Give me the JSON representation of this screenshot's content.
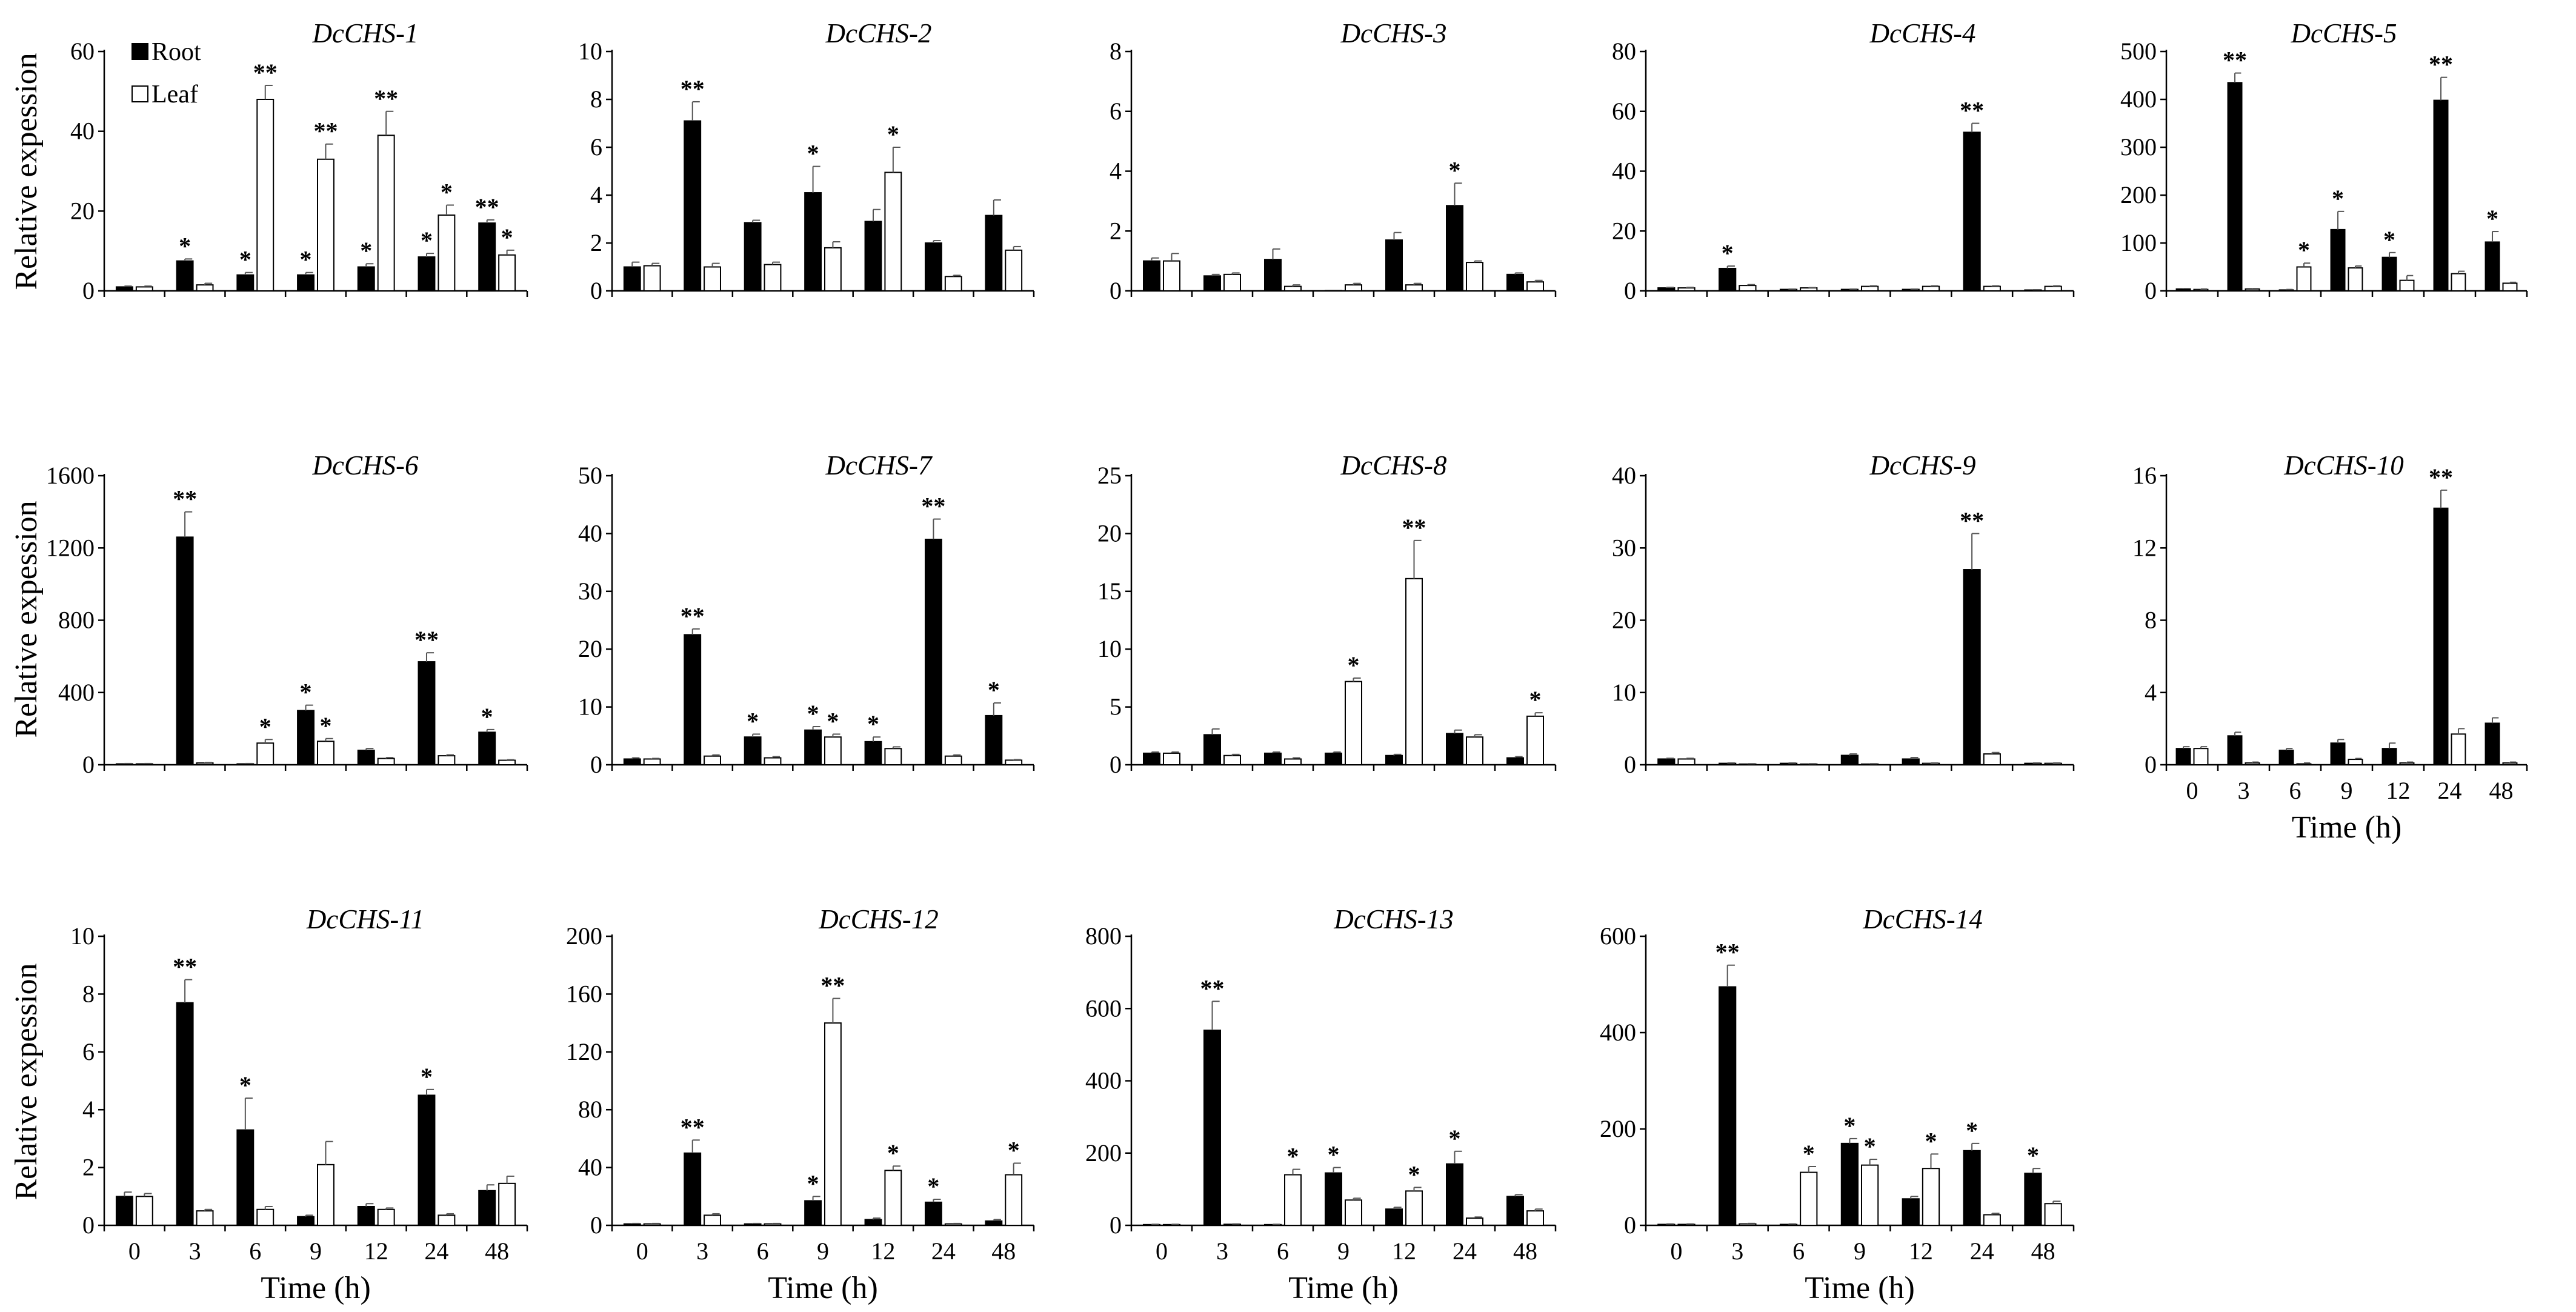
{
  "legend": {
    "root": "Root",
    "leaf": "Leaf"
  },
  "chart_data": [
    {
      "type": "bar",
      "title": "DcCHS-1",
      "categories": [
        "0",
        "3",
        "6",
        "9",
        "12",
        "24",
        "48"
      ],
      "ylim": [
        0,
        60
      ],
      "yticks": [
        0,
        20,
        40,
        60
      ],
      "ylabel": "Relative expession",
      "xlabel": "",
      "show_xticklabels": false,
      "series": [
        {
          "name": "Root",
          "values": [
            1,
            7.5,
            4,
            4,
            6,
            8.5,
            17
          ],
          "errors": [
            0.2,
            0.5,
            0.6,
            0.6,
            0.8,
            0.9,
            0.8
          ],
          "stars": [
            "",
            "*",
            "*",
            "*",
            "*",
            "*",
            "**"
          ]
        },
        {
          "name": "Leaf",
          "values": [
            1,
            1.5,
            48,
            33,
            39,
            19,
            9
          ],
          "errors": [
            0.2,
            0.4,
            3.5,
            3.8,
            6,
            2.5,
            1.2
          ],
          "stars": [
            "",
            "",
            "**",
            "**",
            "**",
            "*",
            "*"
          ]
        }
      ]
    },
    {
      "type": "bar",
      "title": "DcCHS-2",
      "categories": [
        "0",
        "3",
        "6",
        "9",
        "12",
        "24",
        "48"
      ],
      "ylim": [
        0,
        10
      ],
      "yticks": [
        0,
        2,
        4,
        6,
        8,
        10
      ],
      "ylabel": "",
      "xlabel": "",
      "show_xticklabels": false,
      "series": [
        {
          "name": "Root",
          "values": [
            1,
            7.1,
            2.85,
            4.1,
            2.9,
            2,
            3.15
          ],
          "errors": [
            0.2,
            0.8,
            0.1,
            1.1,
            0.5,
            0.1,
            0.65
          ],
          "stars": [
            "",
            "**",
            "",
            "*",
            "",
            "",
            ""
          ]
        },
        {
          "name": "Leaf",
          "values": [
            1.05,
            1,
            1.1,
            1.8,
            4.95,
            0.6,
            1.7
          ],
          "errors": [
            0.1,
            0.15,
            0.1,
            0.25,
            1.05,
            0.05,
            0.15
          ],
          "stars": [
            "",
            "",
            "",
            "",
            "*",
            "",
            ""
          ]
        }
      ]
    },
    {
      "type": "bar",
      "title": "DcCHS-3",
      "categories": [
        "0",
        "3",
        "6",
        "9",
        "12",
        "24",
        "48"
      ],
      "ylim": [
        0,
        8
      ],
      "yticks": [
        0,
        2,
        4,
        6,
        8
      ],
      "ylabel": "",
      "xlabel": "",
      "show_xticklabels": false,
      "series": [
        {
          "name": "Root",
          "values": [
            1,
            0.5,
            1.05,
            0,
            1.7,
            2.85,
            0.55
          ],
          "errors": [
            0.1,
            0.05,
            0.35,
            0,
            0.25,
            0.75,
            0.05
          ],
          "stars": [
            "",
            "",
            "",
            "",
            "",
            "*",
            ""
          ]
        },
        {
          "name": "Leaf",
          "values": [
            1,
            0.55,
            0.15,
            0.2,
            0.2,
            0.95,
            0.3
          ],
          "errors": [
            0.25,
            0.05,
            0.05,
            0.05,
            0.05,
            0.05,
            0.05
          ],
          "stars": [
            "",
            "",
            "",
            "",
            "",
            "",
            ""
          ]
        }
      ]
    },
    {
      "type": "bar",
      "title": "DcCHS-4",
      "categories": [
        "0",
        "3",
        "6",
        "9",
        "12",
        "24",
        "48"
      ],
      "ylim": [
        0,
        80
      ],
      "yticks": [
        0,
        20,
        40,
        60,
        80
      ],
      "ylabel": "",
      "xlabel": "",
      "show_xticklabels": false,
      "series": [
        {
          "name": "Root",
          "values": [
            1,
            7.5,
            0.5,
            0.5,
            0.5,
            53,
            0.3
          ],
          "errors": [
            0.2,
            0.8,
            0.1,
            0.1,
            0.1,
            3,
            0.1
          ],
          "stars": [
            "",
            "*",
            "",
            "",
            "",
            "**",
            ""
          ]
        },
        {
          "name": "Leaf",
          "values": [
            1,
            1.8,
            1,
            1.5,
            1.5,
            1.5,
            1.5
          ],
          "errors": [
            0.2,
            0.3,
            0.1,
            0.2,
            0.2,
            0.2,
            0.2
          ],
          "stars": [
            "",
            "",
            "",
            "",
            "",
            "",
            ""
          ]
        }
      ]
    },
    {
      "type": "bar",
      "title": "DcCHS-5",
      "categories": [
        "0",
        "3",
        "6",
        "9",
        "12",
        "24",
        "48"
      ],
      "ylim": [
        0,
        500
      ],
      "yticks": [
        0,
        100,
        200,
        300,
        400,
        500
      ],
      "ylabel": "",
      "xlabel": "",
      "show_xticklabels": false,
      "series": [
        {
          "name": "Root",
          "values": [
            4,
            435,
            2,
            128,
            70,
            398,
            102
          ],
          "errors": [
            1,
            20,
            1,
            38,
            10,
            48,
            22
          ],
          "stars": [
            "",
            "**",
            "",
            "*",
            "*",
            "**",
            "*"
          ]
        },
        {
          "name": "Leaf",
          "values": [
            3,
            4,
            50,
            48,
            22,
            36,
            16
          ],
          "errors": [
            1,
            1,
            8,
            4,
            10,
            5,
            2
          ],
          "stars": [
            "",
            "",
            "*",
            "",
            "",
            "",
            ""
          ]
        }
      ]
    },
    {
      "type": "bar",
      "title": "DcCHS-6",
      "categories": [
        "0",
        "3",
        "6",
        "9",
        "12",
        "24",
        "48"
      ],
      "ylim": [
        0,
        1600
      ],
      "yticks": [
        0,
        400,
        800,
        1200,
        1600
      ],
      "ylabel": "Relative expession",
      "xlabel": "",
      "show_xticklabels": false,
      "series": [
        {
          "name": "Root",
          "values": [
            5,
            1260,
            5,
            300,
            80,
            570,
            180
          ],
          "errors": [
            2,
            140,
            2,
            30,
            10,
            50,
            15
          ],
          "stars": [
            "",
            "**",
            "",
            "*",
            "",
            "**",
            "*"
          ]
        },
        {
          "name": "Leaf",
          "values": [
            5,
            10,
            120,
            130,
            35,
            50,
            25
          ],
          "errors": [
            2,
            3,
            20,
            15,
            5,
            5,
            3
          ],
          "stars": [
            "",
            "",
            "*",
            "*",
            "",
            "",
            ""
          ]
        }
      ]
    },
    {
      "type": "bar",
      "title": "DcCHS-7",
      "categories": [
        "0",
        "3",
        "6",
        "9",
        "12",
        "24",
        "48"
      ],
      "ylim": [
        0,
        50
      ],
      "yticks": [
        0,
        10,
        20,
        30,
        40,
        50
      ],
      "ylabel": "",
      "xlabel": "",
      "show_xticklabels": false,
      "series": [
        {
          "name": "Root",
          "values": [
            1,
            22.5,
            4.8,
            6,
            4,
            39,
            8.5
          ],
          "errors": [
            0.2,
            1,
            0.5,
            0.6,
            0.8,
            3.5,
            2.2
          ],
          "stars": [
            "",
            "**",
            "*",
            "*",
            "*",
            "**",
            "*"
          ]
        },
        {
          "name": "Leaf",
          "values": [
            1,
            1.5,
            1.2,
            4.8,
            2.8,
            1.5,
            0.8
          ],
          "errors": [
            0.1,
            0.2,
            0.2,
            0.5,
            0.3,
            0.2,
            0.1
          ],
          "stars": [
            "",
            "",
            "",
            "*",
            "",
            "",
            ""
          ]
        }
      ]
    },
    {
      "type": "bar",
      "title": "DcCHS-8",
      "categories": [
        "0",
        "3",
        "6",
        "9",
        "12",
        "24",
        "48"
      ],
      "ylim": [
        0,
        25
      ],
      "yticks": [
        0,
        5,
        10,
        15,
        20,
        25
      ],
      "ylabel": "",
      "xlabel": "",
      "show_xticklabels": false,
      "series": [
        {
          "name": "Root",
          "values": [
            1,
            2.6,
            1,
            1,
            0.8,
            2.7,
            0.6
          ],
          "errors": [
            0.1,
            0.5,
            0.1,
            0.1,
            0.1,
            0.3,
            0.1
          ],
          "stars": [
            "",
            "",
            "",
            "",
            "",
            "",
            ""
          ]
        },
        {
          "name": "Leaf",
          "values": [
            1,
            0.8,
            0.5,
            7.2,
            16.1,
            2.4,
            4.2
          ],
          "errors": [
            0.1,
            0.1,
            0.1,
            0.3,
            3.3,
            0.2,
            0.3
          ],
          "stars": [
            "",
            "",
            "",
            "*",
            "**",
            "",
            "*"
          ]
        }
      ]
    },
    {
      "type": "bar",
      "title": "DcCHS-9",
      "categories": [
        "0",
        "3",
        "6",
        "9",
        "12",
        "24",
        "48"
      ],
      "ylim": [
        0,
        40
      ],
      "yticks": [
        0,
        10,
        20,
        30,
        40
      ],
      "ylabel": "",
      "xlabel": "",
      "show_xticklabels": false,
      "series": [
        {
          "name": "Root",
          "values": [
            0.8,
            0.2,
            0.2,
            1.3,
            0.8,
            27,
            0.2
          ],
          "errors": [
            0.1,
            0.05,
            0.05,
            0.2,
            0.2,
            5,
            0.05
          ],
          "stars": [
            "",
            "",
            "",
            "",
            "",
            "**",
            ""
          ]
        },
        {
          "name": "Leaf",
          "values": [
            0.8,
            0.1,
            0.1,
            0.1,
            0.2,
            1.5,
            0.2
          ],
          "errors": [
            0.1,
            0.05,
            0.05,
            0.05,
            0.05,
            0.2,
            0.05
          ],
          "stars": [
            "",
            "",
            "",
            "",
            "",
            "",
            ""
          ]
        }
      ]
    },
    {
      "type": "bar",
      "title": "DcCHS-10",
      "categories": [
        "0",
        "3",
        "6",
        "9",
        "12",
        "24",
        "48"
      ],
      "ylim": [
        0,
        16
      ],
      "yticks": [
        0,
        4,
        8,
        12,
        16
      ],
      "ylabel": "",
      "xlabel": "Time (h)",
      "show_xticklabels": true,
      "series": [
        {
          "name": "Root",
          "values": [
            0.9,
            1.6,
            0.8,
            1.2,
            0.9,
            14.2,
            2.3
          ],
          "errors": [
            0.1,
            0.2,
            0.1,
            0.2,
            0.3,
            1,
            0.3
          ],
          "stars": [
            "",
            "",
            "",
            "",
            "",
            "**",
            ""
          ]
        },
        {
          "name": "Leaf",
          "values": [
            0.9,
            0.1,
            0.05,
            0.3,
            0.1,
            1.7,
            0.1
          ],
          "errors": [
            0.1,
            0.05,
            0.05,
            0.05,
            0.05,
            0.3,
            0.05
          ],
          "stars": [
            "",
            "",
            "",
            "",
            "",
            "",
            ""
          ]
        }
      ]
    },
    {
      "type": "bar",
      "title": "DcCHS-11",
      "categories": [
        "0",
        "3",
        "6",
        "9",
        "12",
        "24",
        "48"
      ],
      "ylim": [
        0,
        10
      ],
      "yticks": [
        0,
        2,
        4,
        6,
        8,
        10
      ],
      "ylabel": "Relative expession",
      "xlabel": "Time (h)",
      "show_xticklabels": true,
      "series": [
        {
          "name": "Root",
          "values": [
            1,
            7.7,
            3.3,
            0.3,
            0.65,
            4.5,
            1.2
          ],
          "errors": [
            0.15,
            0.8,
            1.1,
            0.05,
            0.1,
            0.2,
            0.2
          ],
          "stars": [
            "",
            "**",
            "*",
            "",
            "",
            "*",
            ""
          ]
        },
        {
          "name": "Leaf",
          "values": [
            1,
            0.5,
            0.55,
            2.1,
            0.55,
            0.35,
            1.45
          ],
          "errors": [
            0.1,
            0.05,
            0.1,
            0.8,
            0.05,
            0.05,
            0.25
          ],
          "stars": [
            "",
            "",
            "",
            "",
            "",
            "",
            ""
          ]
        }
      ]
    },
    {
      "type": "bar",
      "title": "DcCHS-12",
      "categories": [
        "0",
        "3",
        "6",
        "9",
        "12",
        "24",
        "48"
      ],
      "ylim": [
        0,
        200
      ],
      "yticks": [
        0,
        40,
        80,
        120,
        160,
        200
      ],
      "ylabel": "",
      "xlabel": "Time (h)",
      "show_xticklabels": true,
      "series": [
        {
          "name": "Root",
          "values": [
            1,
            50,
            1,
            17,
            4,
            16,
            3
          ],
          "errors": [
            0.3,
            9,
            0.3,
            3,
            1,
            2,
            1
          ],
          "stars": [
            "",
            "**",
            "",
            "*",
            "",
            "*",
            ""
          ]
        },
        {
          "name": "Leaf",
          "values": [
            1,
            7,
            1,
            140,
            38,
            1,
            35
          ],
          "errors": [
            0.3,
            1,
            0.3,
            17,
            3,
            0.3,
            8
          ],
          "stars": [
            "",
            "",
            "",
            "**",
            "*",
            "",
            "*"
          ]
        }
      ]
    },
    {
      "type": "bar",
      "title": "DcCHS-13",
      "categories": [
        "0",
        "3",
        "6",
        "9",
        "12",
        "24",
        "48"
      ],
      "ylim": [
        0,
        800
      ],
      "yticks": [
        0,
        200,
        400,
        600,
        800
      ],
      "ylabel": "",
      "xlabel": "Time (h)",
      "show_xticklabels": true,
      "series": [
        {
          "name": "Root",
          "values": [
            2,
            540,
            2,
            145,
            45,
            170,
            80
          ],
          "errors": [
            1,
            80,
            1,
            15,
            5,
            35,
            5
          ],
          "stars": [
            "",
            "**",
            "",
            "*",
            "",
            "*",
            ""
          ]
        },
        {
          "name": "Leaf",
          "values": [
            2,
            3,
            140,
            70,
            95,
            20,
            40
          ],
          "errors": [
            1,
            1,
            15,
            5,
            10,
            3,
            5
          ],
          "stars": [
            "",
            "",
            "*",
            "",
            "*",
            "",
            ""
          ]
        }
      ]
    },
    {
      "type": "bar",
      "title": "DcCHS-14",
      "categories": [
        "0",
        "3",
        "6",
        "9",
        "12",
        "24",
        "48"
      ],
      "ylim": [
        0,
        600
      ],
      "yticks": [
        0,
        200,
        400,
        600
      ],
      "ylabel": "",
      "xlabel": "Time (h)",
      "show_xticklabels": true,
      "series": [
        {
          "name": "Root",
          "values": [
            2,
            495,
            2,
            170,
            55,
            155,
            108
          ],
          "errors": [
            1,
            45,
            1,
            10,
            5,
            15,
            10
          ],
          "stars": [
            "",
            "**",
            "",
            "*",
            "",
            "*",
            "*"
          ]
        },
        {
          "name": "Leaf",
          "values": [
            2,
            3,
            110,
            125,
            118,
            22,
            45
          ],
          "errors": [
            1,
            1,
            12,
            12,
            30,
            3,
            5
          ],
          "stars": [
            "",
            "",
            "*",
            "*",
            "*",
            "",
            ""
          ]
        }
      ]
    }
  ]
}
